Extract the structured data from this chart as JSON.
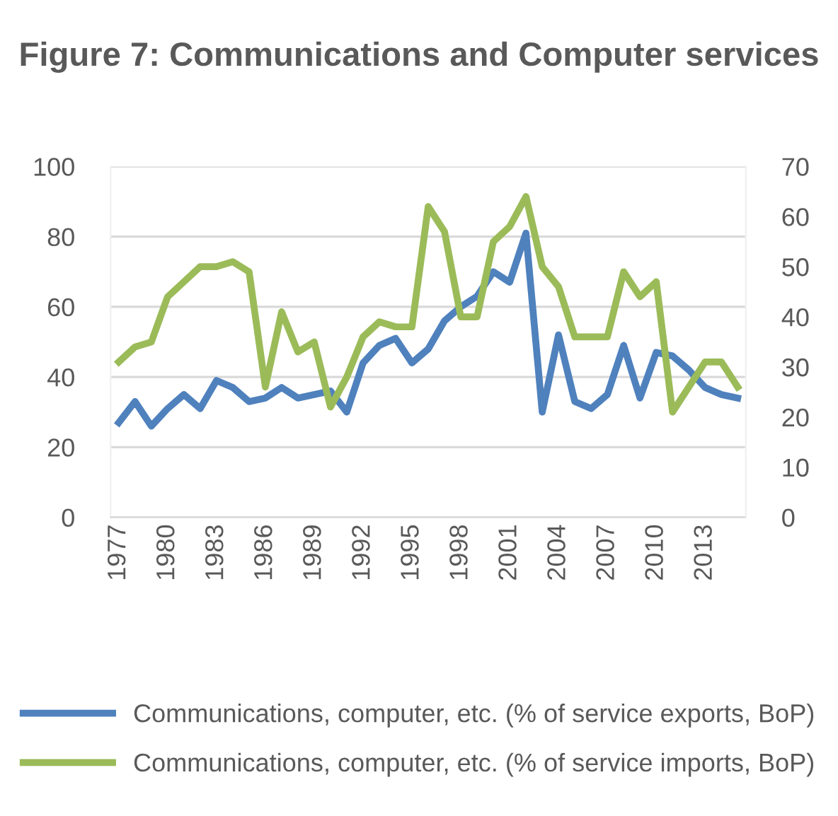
{
  "chart_data": {
    "type": "line",
    "title": "Figure 7: Communications and Computer services",
    "categories": [
      "1977",
      null,
      null,
      "1980",
      null,
      null,
      "1983",
      null,
      null,
      "1986",
      null,
      null,
      "1989",
      null,
      null,
      "1992",
      null,
      null,
      "1995",
      null,
      null,
      "1998",
      null,
      null,
      "2001",
      null,
      null,
      "2004",
      null,
      null,
      "2007",
      null,
      null,
      "2010",
      null,
      null,
      "2013",
      null,
      null
    ],
    "series": [
      {
        "name": "Communications, computer, etc. (% of service exports, BoP)",
        "color": "#4f81bd",
        "values": [
          27,
          33,
          26,
          31,
          35,
          31,
          39,
          37,
          33,
          34,
          37,
          34,
          35,
          36,
          30,
          44,
          49,
          51,
          44,
          48,
          56,
          60,
          63,
          70,
          67,
          81,
          30,
          52,
          33,
          31,
          35,
          49,
          34,
          47,
          46,
          42,
          37,
          35,
          34
        ]
      },
      {
        "name": "Communications, computer, etc. (% of service imports, BoP)",
        "color": "#9bbb59",
        "axis": "y2",
        "values": [
          31,
          34,
          35,
          44,
          47,
          50,
          50,
          51,
          49,
          26,
          41,
          33,
          35,
          22,
          28,
          36,
          39,
          38,
          38,
          62,
          57,
          40,
          40,
          55,
          58,
          64,
          50,
          46,
          36,
          36,
          36,
          49,
          44,
          47,
          21,
          26,
          31,
          31,
          26
        ]
      }
    ],
    "ylim": [
      0,
      100
    ],
    "yticks": [
      0,
      20,
      40,
      60,
      80,
      100
    ],
    "y2lim": [
      0,
      70
    ],
    "y2ticks": [
      0,
      10,
      20,
      30,
      40,
      50,
      60,
      70
    ],
    "grid": "y",
    "legend": "bottom",
    "marker": "none",
    "line_style": "solid"
  }
}
